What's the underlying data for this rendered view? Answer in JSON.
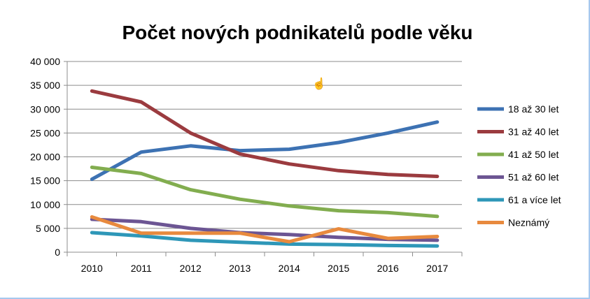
{
  "chart_data": {
    "type": "line",
    "title": "Počet nových podnikatelů podle věku",
    "xlabel": "",
    "ylabel": "",
    "categories": [
      "2010",
      "2011",
      "2012",
      "2013",
      "2014",
      "2015",
      "2016",
      "2017"
    ],
    "y_ticks": [
      "0",
      "5 000",
      "10 000",
      "15 000",
      "20 000",
      "25 000",
      "30 000",
      "35 000",
      "40 000"
    ],
    "ylim": [
      0,
      40000
    ],
    "y_step": 5000,
    "grid": true,
    "legend_position": "right",
    "series": [
      {
        "name": "18 až 30 let",
        "color": "#3d72b3",
        "values": [
          15300,
          21000,
          22300,
          21300,
          21600,
          23000,
          25000,
          27300
        ]
      },
      {
        "name": "31 až 40 let",
        "color": "#9b3b3f",
        "values": [
          33800,
          31500,
          25000,
          20600,
          18500,
          17100,
          16300,
          15900
        ]
      },
      {
        "name": "41 až 50 let",
        "color": "#82ad4f",
        "values": [
          17800,
          16500,
          13100,
          11100,
          9700,
          8700,
          8300,
          7500
        ]
      },
      {
        "name": "51 až 60 let",
        "color": "#6c5593",
        "values": [
          6900,
          6400,
          5000,
          4100,
          3700,
          3100,
          2700,
          2500
        ]
      },
      {
        "name": "61 a více let",
        "color": "#2e97b8",
        "values": [
          4100,
          3400,
          2500,
          2100,
          1700,
          1600,
          1400,
          1300
        ]
      },
      {
        "name": "Neznámý",
        "color": "#e88a3e",
        "values": [
          7400,
          4000,
          4000,
          4000,
          2200,
          4900,
          2900,
          3300
        ]
      }
    ]
  }
}
